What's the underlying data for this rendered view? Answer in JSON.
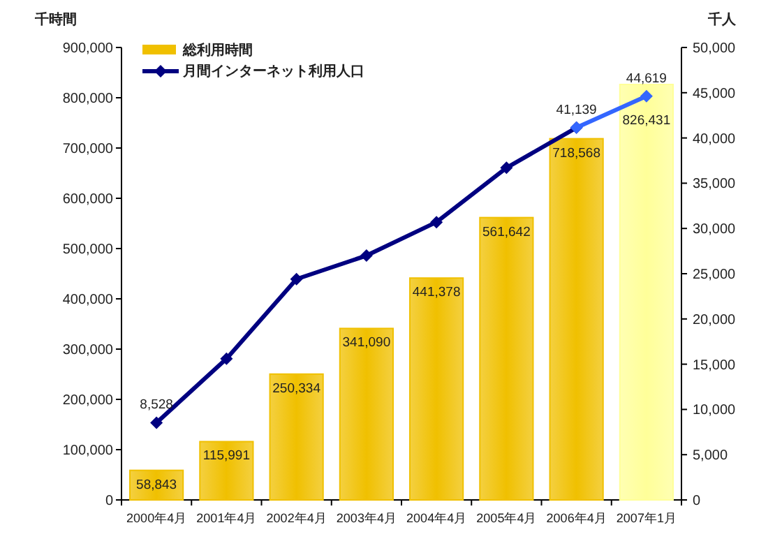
{
  "chart_data": {
    "type": "bar",
    "ylabel": "千時間",
    "y2label": "千人",
    "categories": [
      "2000年4月",
      "2001年4月",
      "2002年4月",
      "2003年4月",
      "2004年4月",
      "2005年4月",
      "2006年4月",
      "2007年1月"
    ],
    "series": [
      {
        "name": "総利用時間",
        "color": "#f0c000",
        "colors": [
          "#f0c000",
          "#f0c000",
          "#f0c000",
          "#f0c000",
          "#f0c000",
          "#f0c000",
          "#f0c000",
          "#ffff99"
        ],
        "values": [
          58843,
          115991,
          250334,
          341090,
          441378,
          561642,
          718568,
          826431
        ],
        "value_labels": [
          "58,843",
          "115,991",
          "250,334",
          "341,090",
          "441,378",
          "561,642",
          "718,568",
          "826,431"
        ]
      },
      {
        "name": "月間インターネット利用人口",
        "type": "line",
        "axis": "y2",
        "color": "#000080",
        "values": [
          8528,
          15600,
          24400,
          27000,
          30700,
          36700,
          41139,
          null
        ],
        "value_labels": [
          "8,528",
          null,
          null,
          null,
          null,
          null,
          "41,139",
          null
        ]
      },
      {
        "type": "line",
        "axis": "y2",
        "color": "#3366ff",
        "values": [
          null,
          null,
          null,
          null,
          null,
          null,
          41139,
          44619
        ],
        "value_labels": [
          null,
          null,
          null,
          null,
          null,
          null,
          null,
          "44,619"
        ]
      }
    ],
    "ylim": [
      0,
      900000
    ],
    "yticks": [
      0,
      {
        "value": 100000,
        "label": "100,000"
      },
      {
        "value": 200000,
        "label": "200,000"
      },
      {
        "value": 300000,
        "label": "300,000"
      },
      {
        "value": 400000,
        "label": "400,000"
      },
      {
        "value": 500000,
        "label": "500,000"
      },
      {
        "value": 600000,
        "label": "600,000"
      },
      {
        "value": 700000,
        "label": "700,000"
      },
      {
        "value": 800000,
        "label": "800,000"
      },
      {
        "value": 900000,
        "label": "900,000"
      }
    ],
    "y2lim": [
      0,
      50000
    ],
    "y2ticks": [
      0,
      {
        "value": 5000,
        "label": "5,000"
      },
      {
        "value": 10000,
        "label": "10,000"
      },
      {
        "value": 15000,
        "label": "15,000"
      },
      {
        "value": 20000,
        "label": "20,000"
      },
      {
        "value": 25000,
        "label": "25,000"
      },
      {
        "value": 30000,
        "label": "30,000"
      },
      {
        "value": 35000,
        "label": "35,000"
      },
      {
        "value": 40000,
        "label": "40,000"
      },
      {
        "value": 45000,
        "label": "45,000"
      },
      {
        "value": 50000,
        "label": "50,000"
      }
    ],
    "marker": "diamond",
    "grid": false,
    "legend": "top left"
  }
}
